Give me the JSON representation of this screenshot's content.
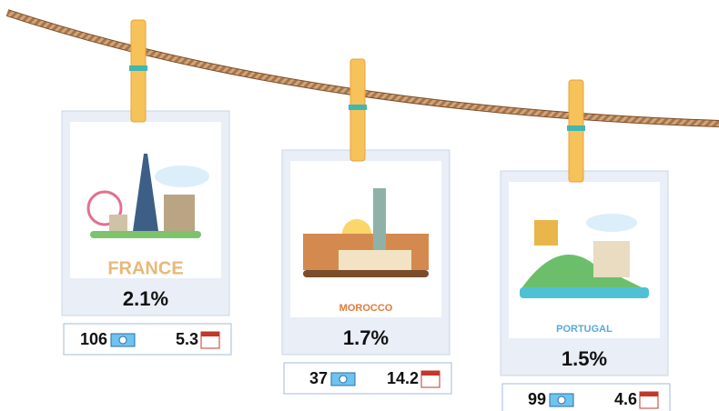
{
  "cards": [
    {
      "name": "FRANCE",
      "share": "2.1%",
      "count": 106,
      "days": 5.3
    },
    {
      "name": "MOROCCO",
      "share": "1.7%",
      "count": 37,
      "days": 14.2
    },
    {
      "name": "PORTUGAL",
      "share": "1.5%",
      "count": 99,
      "days": 4.6
    }
  ]
}
